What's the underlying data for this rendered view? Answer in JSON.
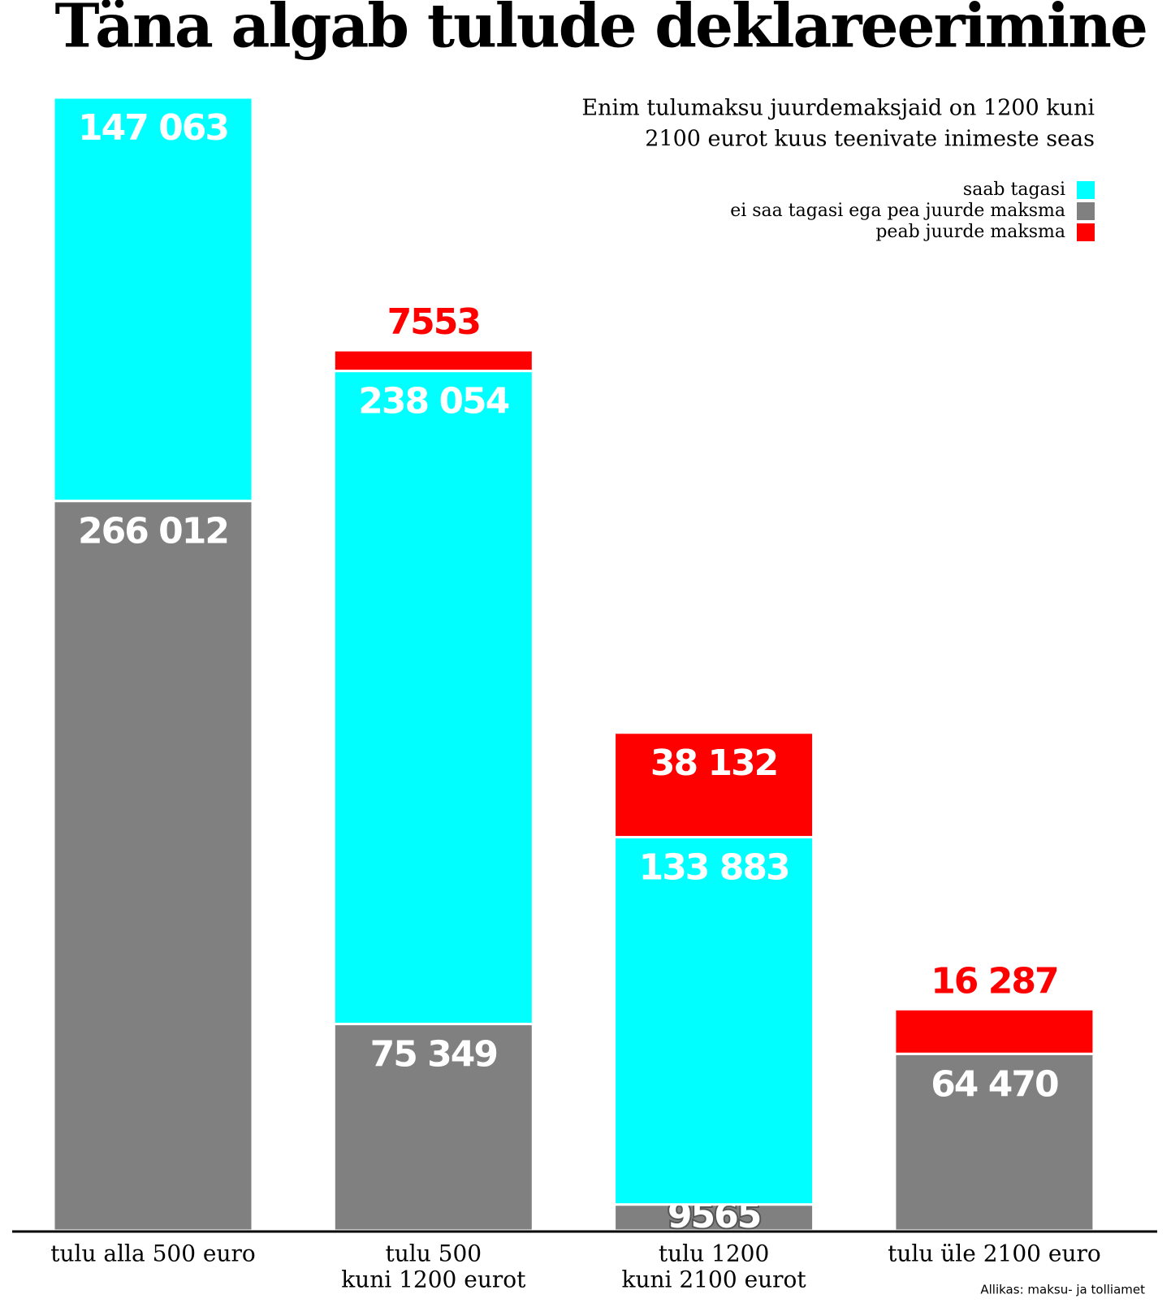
{
  "chart_data": {
    "type": "stacked_bar",
    "title": "Täna algab tulude deklareerimine",
    "subtitle": [
      "Enim tulumaksu juurdemaksjaid on 1200 kuni",
      "2100 eurot kuus teenivate inimeste seas"
    ],
    "categories": [
      [
        "tulu alla 500 euro"
      ],
      [
        "tulu 500",
        "kuni 1200 eurot"
      ],
      [
        "tulu 1200",
        "kuni 2100 eurot"
      ],
      [
        "tulu üle 2100 euro"
      ]
    ],
    "series": [
      {
        "name": "ei saa tagasi ega pea juurde maksma",
        "color": "#808080",
        "values": [
          266012,
          75349,
          9565,
          64470
        ],
        "value_labels": [
          "266 012",
          "75 349",
          "9565",
          "64 470"
        ]
      },
      {
        "name": "saab tagasi",
        "color": "#00ffff",
        "values": [
          147063,
          238054,
          133883,
          null
        ],
        "value_labels": [
          "147 063",
          "238 054",
          "133 883",
          null
        ]
      },
      {
        "name": "peab juurde maksma",
        "color": "#ff0000",
        "values": [
          null,
          7553,
          38132,
          16287
        ],
        "value_labels": [
          null,
          "7553",
          "38 132",
          "16 287"
        ]
      }
    ],
    "legend_order": [
      1,
      0,
      2
    ],
    "source": "Allikas: maksu- ja tolliamet"
  }
}
